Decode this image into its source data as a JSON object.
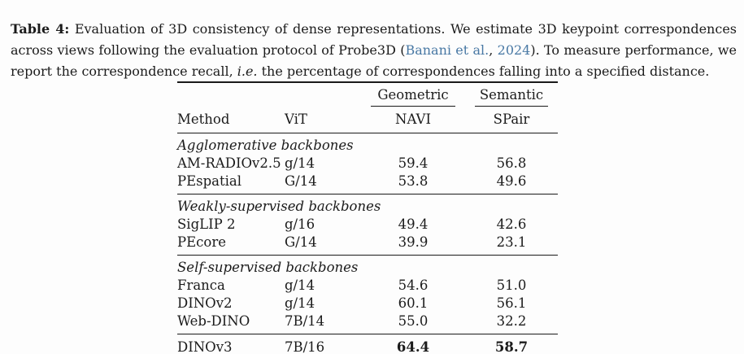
{
  "caption": {
    "label": "Table 4:",
    "part1": " Evaluation of 3D consistency of dense representations. We estimate 3D keypoint correspondences across views following the evaluation protocol of Probe3D (",
    "cite_authors": "Banani et al.",
    "cite_sep": ", ",
    "cite_year": "2024",
    "part2": "). To measure performance, we report the correspondence recall, ",
    "ie": "i.e.",
    "part3": " the percentage of correspondences falling into a specified distance."
  },
  "table": {
    "group_headers": {
      "geometric": "Geometric",
      "semantic": "Semantic"
    },
    "columns": [
      "Method",
      "ViT",
      "NAVI",
      "SPair"
    ],
    "sections": [
      {
        "title": "Agglomerative backbones",
        "rows": [
          {
            "method": "AM-RADIOv2.5",
            "vit": "g/14",
            "navi": "59.4",
            "spair": "56.8"
          },
          {
            "method": "PEspatial",
            "vit": "G/14",
            "navi": "53.8",
            "spair": "49.6"
          }
        ]
      },
      {
        "title": "Weakly-supervised backbones",
        "rows": [
          {
            "method": "SigLIP 2",
            "vit": "g/16",
            "navi": "49.4",
            "spair": "42.6"
          },
          {
            "method": "PEcore",
            "vit": "G/14",
            "navi": "39.9",
            "spair": "23.1"
          }
        ]
      },
      {
        "title": "Self-supervised backbones",
        "rows": [
          {
            "method": "Franca",
            "vit": "g/14",
            "navi": "54.6",
            "spair": "51.0"
          },
          {
            "method": "DINOv2",
            "vit": "g/14",
            "navi": "60.1",
            "spair": "56.1"
          },
          {
            "method": "Web-DINO",
            "vit": "7B/14",
            "navi": "55.0",
            "spair": "32.2"
          }
        ]
      }
    ],
    "final_row": {
      "method": "DINOv3",
      "vit": "7B/16",
      "navi": "64.4",
      "spair": "58.7"
    }
  },
  "colors": {
    "text": "#1b1b1b",
    "link_blue": "#4878a4",
    "rule": "#1a1a1a",
    "background": "#fdfdfd"
  }
}
